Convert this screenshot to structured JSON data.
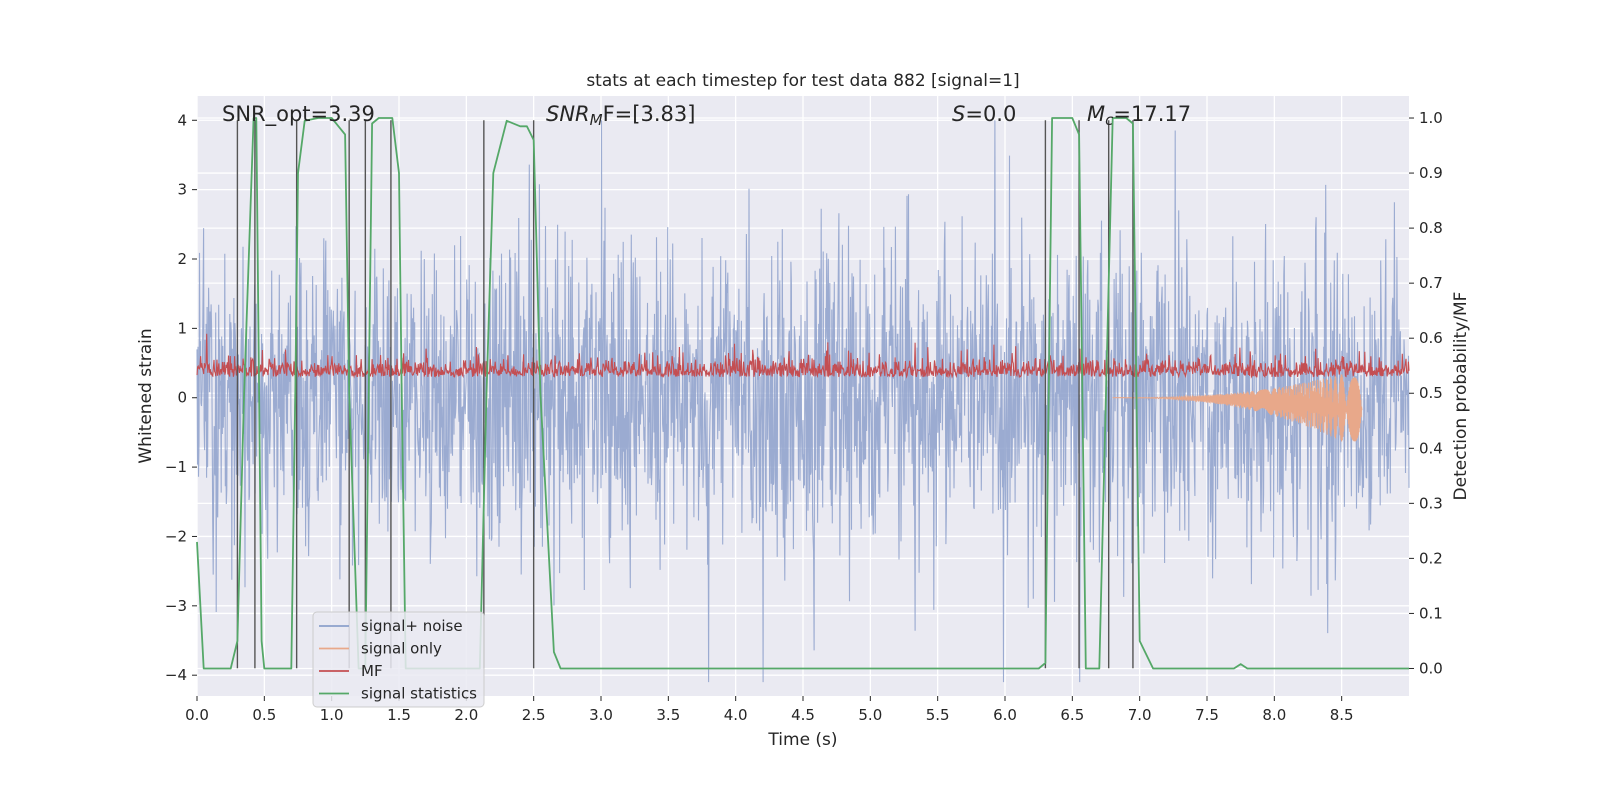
{
  "chart_data": {
    "type": "line",
    "title": "stats at each timestep for test data 882 [signal=1]",
    "xlabel": "Time (s)",
    "ylabel_left": "Whitened strain",
    "ylabel_right": "Detection probability/MF",
    "xlim": [
      0,
      9
    ],
    "ylim_left": [
      -4.3,
      4.35
    ],
    "ylim_right": [
      -0.05,
      1.04
    ],
    "x_ticks": [
      "0.0",
      "0.5",
      "1.0",
      "1.5",
      "2.0",
      "2.5",
      "3.0",
      "3.5",
      "4.0",
      "4.5",
      "5.0",
      "5.5",
      "6.0",
      "6.5",
      "7.0",
      "7.5",
      "8.0",
      "8.5"
    ],
    "y_ticks_left": [
      "4",
      "3",
      "2",
      "1",
      "0",
      "−1",
      "−2",
      "−3",
      "−4"
    ],
    "y_ticks_right": [
      "1.0",
      "0.9",
      "0.8",
      "0.7",
      "0.6",
      "0.5",
      "0.4",
      "0.3",
      "0.2",
      "0.1",
      "0.0"
    ],
    "grid": true,
    "legend_position": "lower-left",
    "annotations": {
      "snr_opt": "SNR_opt=3.39",
      "snr_mf_base": "SNR",
      "snr_mf_sub": "M",
      "snr_mf_rest": "F=[3.83]",
      "s_label": "S",
      "s_value": "=0.0",
      "mc_label": "M",
      "mc_sub": "c",
      "mc_value": "=17.17"
    },
    "series": [
      {
        "name": "signal+ noise",
        "color": "#8da0cb",
        "axis": "left",
        "description_stats": {
          "center": 0.0,
          "typical_spread": 1.6,
          "peak_max": 4.0,
          "peak_min": -4.1
        }
      },
      {
        "name": "signal only",
        "color": "#e8a88a",
        "axis": "left",
        "chirp": {
          "start": 6.8,
          "end": 8.65,
          "max_amplitude": 0.6
        }
      },
      {
        "name": "MF",
        "color": "#c44e52",
        "axis": "left",
        "description_stats": {
          "center": 0.35,
          "typical_spread": 0.3,
          "peak_max": 0.95,
          "peak_min": 0.0
        }
      },
      {
        "name": "signal statistics",
        "color": "#55a868",
        "axis": "right",
        "x": [
          0.0,
          0.05,
          0.25,
          0.3,
          0.35,
          0.42,
          0.44,
          0.48,
          0.5,
          0.56,
          0.7,
          0.73,
          0.75,
          0.8,
          0.9,
          1.0,
          1.1,
          1.13,
          1.2,
          1.25,
          1.3,
          1.35,
          1.45,
          1.5,
          1.52,
          1.55,
          1.7,
          1.8,
          2.0,
          2.1,
          2.15,
          2.2,
          2.3,
          2.4,
          2.45,
          2.5,
          2.55,
          2.65,
          2.7,
          2.8,
          3.0,
          4.0,
          5.0,
          6.0,
          6.25,
          6.3,
          6.35,
          6.5,
          6.55,
          6.6,
          6.7,
          6.75,
          6.8,
          6.9,
          6.95,
          7.0,
          7.1,
          7.5,
          7.7,
          7.75,
          7.8,
          8.0,
          9.0
        ],
        "y": [
          0.23,
          0.0,
          0.0,
          0.05,
          0.5,
          1.0,
          1.0,
          0.05,
          0.0,
          0.0,
          0.0,
          0.5,
          0.9,
          0.995,
          1.0,
          1.0,
          0.97,
          0.5,
          0.0,
          0.0,
          0.99,
          1.0,
          1.0,
          0.9,
          0.5,
          0.0,
          0.0,
          0.0,
          0.0,
          0.0,
          0.5,
          0.9,
          0.995,
          0.985,
          0.985,
          0.96,
          0.5,
          0.03,
          0.0,
          0.0,
          0.0,
          0.0,
          0.0,
          0.0,
          0.0,
          0.01,
          1.0,
          1.0,
          0.97,
          0.0,
          0.0,
          0.5,
          1.0,
          1.0,
          0.99,
          0.05,
          0.0,
          0.0,
          0.0,
          0.008,
          0.0,
          0.0,
          0.0
        ]
      }
    ],
    "vertical_lines": {
      "color": "#555555",
      "x": [
        0.3,
        0.43,
        0.74,
        1.13,
        1.25,
        1.44,
        2.13,
        2.5,
        6.3,
        6.55,
        6.77,
        6.95
      ]
    }
  }
}
